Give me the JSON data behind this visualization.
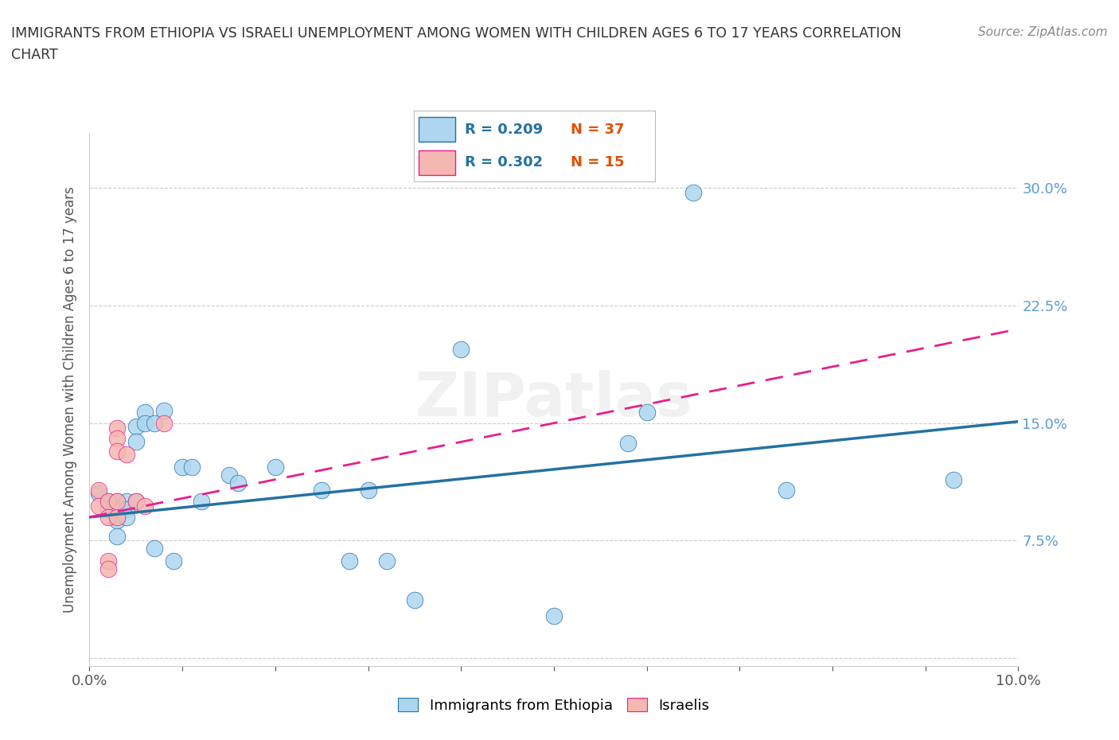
{
  "title_line1": "IMMIGRANTS FROM ETHIOPIA VS ISRAELI UNEMPLOYMENT AMONG WOMEN WITH CHILDREN AGES 6 TO 17 YEARS CORRELATION",
  "title_line2": "CHART",
  "source_text": "Source: ZipAtlas.com",
  "ylabel": "Unemployment Among Women with Children Ages 6 to 17 years",
  "xlim": [
    0.0,
    0.1
  ],
  "ylim": [
    -0.005,
    0.335
  ],
  "yticks": [
    0.0,
    0.075,
    0.15,
    0.225,
    0.3
  ],
  "ytick_labels_right": [
    "",
    "7.5%",
    "15.0%",
    "22.5%",
    "30.0%"
  ],
  "xticks": [
    0.0,
    0.01,
    0.02,
    0.03,
    0.04,
    0.05,
    0.06,
    0.07,
    0.08,
    0.09,
    0.1
  ],
  "xtick_labels": [
    "0.0%",
    "",
    "",
    "",
    "",
    "",
    "",
    "",
    "",
    "",
    "10.0%"
  ],
  "blue_scatter": [
    [
      0.001,
      0.105
    ],
    [
      0.002,
      0.1
    ],
    [
      0.002,
      0.095
    ],
    [
      0.003,
      0.1
    ],
    [
      0.003,
      0.095
    ],
    [
      0.003,
      0.088
    ],
    [
      0.003,
      0.078
    ],
    [
      0.004,
      0.1
    ],
    [
      0.004,
      0.095
    ],
    [
      0.004,
      0.09
    ],
    [
      0.005,
      0.148
    ],
    [
      0.005,
      0.138
    ],
    [
      0.005,
      0.1
    ],
    [
      0.006,
      0.157
    ],
    [
      0.006,
      0.15
    ],
    [
      0.007,
      0.15
    ],
    [
      0.007,
      0.07
    ],
    [
      0.008,
      0.158
    ],
    [
      0.009,
      0.062
    ],
    [
      0.01,
      0.122
    ],
    [
      0.011,
      0.122
    ],
    [
      0.012,
      0.1
    ],
    [
      0.015,
      0.117
    ],
    [
      0.016,
      0.112
    ],
    [
      0.02,
      0.122
    ],
    [
      0.025,
      0.107
    ],
    [
      0.028,
      0.062
    ],
    [
      0.03,
      0.107
    ],
    [
      0.032,
      0.062
    ],
    [
      0.035,
      0.037
    ],
    [
      0.04,
      0.197
    ],
    [
      0.05,
      0.027
    ],
    [
      0.058,
      0.137
    ],
    [
      0.06,
      0.157
    ],
    [
      0.065,
      0.297
    ],
    [
      0.075,
      0.107
    ],
    [
      0.093,
      0.114
    ]
  ],
  "pink_scatter": [
    [
      0.001,
      0.107
    ],
    [
      0.001,
      0.097
    ],
    [
      0.002,
      0.1
    ],
    [
      0.002,
      0.09
    ],
    [
      0.002,
      0.062
    ],
    [
      0.002,
      0.057
    ],
    [
      0.003,
      0.147
    ],
    [
      0.003,
      0.14
    ],
    [
      0.003,
      0.132
    ],
    [
      0.003,
      0.1
    ],
    [
      0.003,
      0.09
    ],
    [
      0.004,
      0.13
    ],
    [
      0.005,
      0.1
    ],
    [
      0.006,
      0.097
    ],
    [
      0.008,
      0.15
    ]
  ],
  "blue_line_x": [
    0.0,
    0.1
  ],
  "blue_line_y": [
    0.09,
    0.151
  ],
  "pink_line_x": [
    0.0,
    0.1
  ],
  "pink_line_y": [
    0.09,
    0.21
  ],
  "blue_color": "#AED6F1",
  "pink_color": "#F5B7B1",
  "blue_line_color": "#2471A3",
  "pink_line_color": "#E91E8C",
  "r_blue": "R = 0.209",
  "n_blue": "N = 37",
  "r_pink": "R = 0.302",
  "n_pink": "N = 15",
  "legend_labels": [
    "Immigrants from Ethiopia",
    "Israelis"
  ],
  "watermark": "ZIPatlas",
  "background_color": "#ffffff",
  "grid_color": "#cccccc",
  "right_label_color": "#5B9BD5",
  "title_color": "#333333"
}
